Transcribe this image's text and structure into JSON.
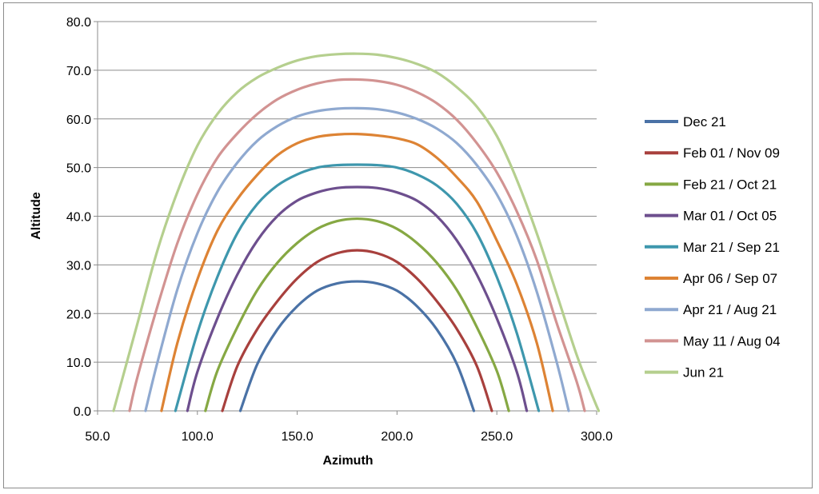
{
  "chart_data": {
    "type": "line",
    "title": "",
    "xlabel": "Azimuth",
    "ylabel": "Altitude",
    "xlim": [
      50,
      300
    ],
    "ylim": [
      0,
      80
    ],
    "x_ticks": [
      "50.0",
      "100.0",
      "150.0",
      "200.0",
      "250.0",
      "300.0"
    ],
    "y_ticks": [
      "0.0",
      "10.0",
      "20.0",
      "30.0",
      "40.0",
      "50.0",
      "60.0",
      "70.0",
      "80.0"
    ],
    "grid": "horizontal",
    "legend_position": "right",
    "series": [
      {
        "name": "Dec 21",
        "color": "#4a72a6",
        "points": [
          [
            121.5,
            0
          ],
          [
            130,
            9.6
          ],
          [
            140,
            16.7
          ],
          [
            150,
            21.5
          ],
          [
            160,
            24.7
          ],
          [
            170,
            26.2
          ],
          [
            180,
            26.6
          ],
          [
            190,
            26.2
          ],
          [
            200,
            24.7
          ],
          [
            210,
            21.5
          ],
          [
            220,
            16.7
          ],
          [
            230,
            9.6
          ],
          [
            238.5,
            0
          ]
        ]
      },
      {
        "name": "Feb 01 / Nov 09",
        "color": "#a8403d",
        "points": [
          [
            112.5,
            0
          ],
          [
            120,
            9.2
          ],
          [
            130,
            16.8
          ],
          [
            140,
            22.5
          ],
          [
            150,
            27.2
          ],
          [
            160,
            30.6
          ],
          [
            170,
            32.4
          ],
          [
            180,
            33.0
          ],
          [
            190,
            32.4
          ],
          [
            200,
            30.6
          ],
          [
            210,
            27.2
          ],
          [
            220,
            22.5
          ],
          [
            230,
            16.8
          ],
          [
            240,
            9.2
          ],
          [
            247.5,
            0
          ]
        ]
      },
      {
        "name": "Feb 21 / Oct 21",
        "color": "#86a843",
        "points": [
          [
            104,
            0
          ],
          [
            110,
            8.2
          ],
          [
            120,
            17.2
          ],
          [
            130,
            24.8
          ],
          [
            140,
            30.4
          ],
          [
            150,
            34.5
          ],
          [
            160,
            37.4
          ],
          [
            170,
            39.0
          ],
          [
            180,
            39.5
          ],
          [
            190,
            39.0
          ],
          [
            200,
            37.4
          ],
          [
            210,
            34.5
          ],
          [
            220,
            30.4
          ],
          [
            230,
            24.8
          ],
          [
            240,
            17.2
          ],
          [
            250,
            8.2
          ],
          [
            256,
            0
          ]
        ]
      },
      {
        "name": "Mar 01 / Oct 05",
        "color": "#6d4f8e",
        "points": [
          [
            95,
            0
          ],
          [
            100,
            8.0
          ],
          [
            110,
            19.0
          ],
          [
            120,
            28.0
          ],
          [
            130,
            35.0
          ],
          [
            140,
            40.0
          ],
          [
            150,
            43.2
          ],
          [
            160,
            44.9
          ],
          [
            170,
            45.8
          ],
          [
            180,
            46.0
          ],
          [
            190,
            45.8
          ],
          [
            200,
            44.9
          ],
          [
            210,
            43.2
          ],
          [
            220,
            40.0
          ],
          [
            230,
            35.0
          ],
          [
            240,
            28.0
          ],
          [
            250,
            19.0
          ],
          [
            260,
            8.0
          ],
          [
            265,
            0
          ]
        ]
      },
      {
        "name": "Mar 21 / Sep 21",
        "color": "#3e97ad",
        "points": [
          [
            89,
            0
          ],
          [
            100,
            16.0
          ],
          [
            110,
            27.5
          ],
          [
            120,
            36.5
          ],
          [
            130,
            42.5
          ],
          [
            140,
            46.3
          ],
          [
            150,
            48.6
          ],
          [
            160,
            50.0
          ],
          [
            170,
            50.5
          ],
          [
            180,
            50.6
          ],
          [
            190,
            50.5
          ],
          [
            200,
            50.0
          ],
          [
            210,
            48.6
          ],
          [
            220,
            46.3
          ],
          [
            230,
            42.5
          ],
          [
            240,
            36.5
          ],
          [
            250,
            27.5
          ],
          [
            260,
            16.0
          ],
          [
            271,
            0
          ]
        ]
      },
      {
        "name": "Apr 06 / Sep 07",
        "color": "#dd8334",
        "points": [
          [
            82,
            0
          ],
          [
            90,
            14.0
          ],
          [
            100,
            27.0
          ],
          [
            110,
            37.0
          ],
          [
            120,
            43.5
          ],
          [
            130,
            48.5
          ],
          [
            140,
            52.5
          ],
          [
            150,
            55.0
          ],
          [
            160,
            56.3
          ],
          [
            170,
            56.8
          ],
          [
            180,
            56.9
          ],
          [
            190,
            56.6
          ],
          [
            200,
            56.0
          ],
          [
            210,
            54.8
          ],
          [
            220,
            52.0
          ],
          [
            230,
            48.0
          ],
          [
            240,
            43.0
          ],
          [
            250,
            35.0
          ],
          [
            260,
            26.0
          ],
          [
            270,
            14.0
          ],
          [
            278,
            0
          ]
        ]
      },
      {
        "name": "Apr 21 / Aug 21",
        "color": "#8fa9d0",
        "points": [
          [
            74,
            0
          ],
          [
            80,
            10.0
          ],
          [
            90,
            25.0
          ],
          [
            100,
            36.5
          ],
          [
            110,
            45.0
          ],
          [
            120,
            51.0
          ],
          [
            130,
            55.5
          ],
          [
            140,
            58.5
          ],
          [
            150,
            60.5
          ],
          [
            160,
            61.6
          ],
          [
            170,
            62.1
          ],
          [
            180,
            62.2
          ],
          [
            190,
            62.0
          ],
          [
            200,
            61.3
          ],
          [
            210,
            60.0
          ],
          [
            220,
            58.0
          ],
          [
            230,
            55.0
          ],
          [
            240,
            50.5
          ],
          [
            250,
            44.5
          ],
          [
            260,
            36.0
          ],
          [
            270,
            24.5
          ],
          [
            280,
            10.0
          ],
          [
            286,
            0
          ]
        ]
      },
      {
        "name": "May 11 / Aug 04",
        "color": "#d29392",
        "points": [
          [
            66,
            0
          ],
          [
            70,
            7.0
          ],
          [
            80,
            21.5
          ],
          [
            90,
            34.5
          ],
          [
            100,
            44.5
          ],
          [
            110,
            52.0
          ],
          [
            120,
            57.0
          ],
          [
            130,
            61.0
          ],
          [
            140,
            64.0
          ],
          [
            150,
            66.0
          ],
          [
            160,
            67.3
          ],
          [
            170,
            68.0
          ],
          [
            180,
            68.1
          ],
          [
            190,
            67.8
          ],
          [
            200,
            67.0
          ],
          [
            210,
            65.5
          ],
          [
            220,
            63.2
          ],
          [
            230,
            59.8
          ],
          [
            240,
            55.0
          ],
          [
            250,
            49.0
          ],
          [
            260,
            41.0
          ],
          [
            270,
            31.0
          ],
          [
            280,
            18.0
          ],
          [
            290,
            6.0
          ],
          [
            294,
            0
          ]
        ]
      },
      {
        "name": "Jun 21",
        "color": "#b5cf8e",
        "points": [
          [
            58,
            0
          ],
          [
            60,
            3.0
          ],
          [
            70,
            18.0
          ],
          [
            80,
            33.0
          ],
          [
            90,
            45.0
          ],
          [
            100,
            54.5
          ],
          [
            110,
            61.0
          ],
          [
            120,
            65.5
          ],
          [
            130,
            68.5
          ],
          [
            140,
            70.5
          ],
          [
            150,
            72.0
          ],
          [
            160,
            72.9
          ],
          [
            170,
            73.3
          ],
          [
            180,
            73.4
          ],
          [
            190,
            73.2
          ],
          [
            200,
            72.5
          ],
          [
            210,
            71.3
          ],
          [
            220,
            69.5
          ],
          [
            230,
            66.5
          ],
          [
            240,
            62.5
          ],
          [
            250,
            56.5
          ],
          [
            260,
            47.5
          ],
          [
            270,
            36.5
          ],
          [
            280,
            24.0
          ],
          [
            290,
            11.5
          ],
          [
            297,
            4.0
          ],
          [
            301,
            0
          ]
        ]
      }
    ]
  }
}
